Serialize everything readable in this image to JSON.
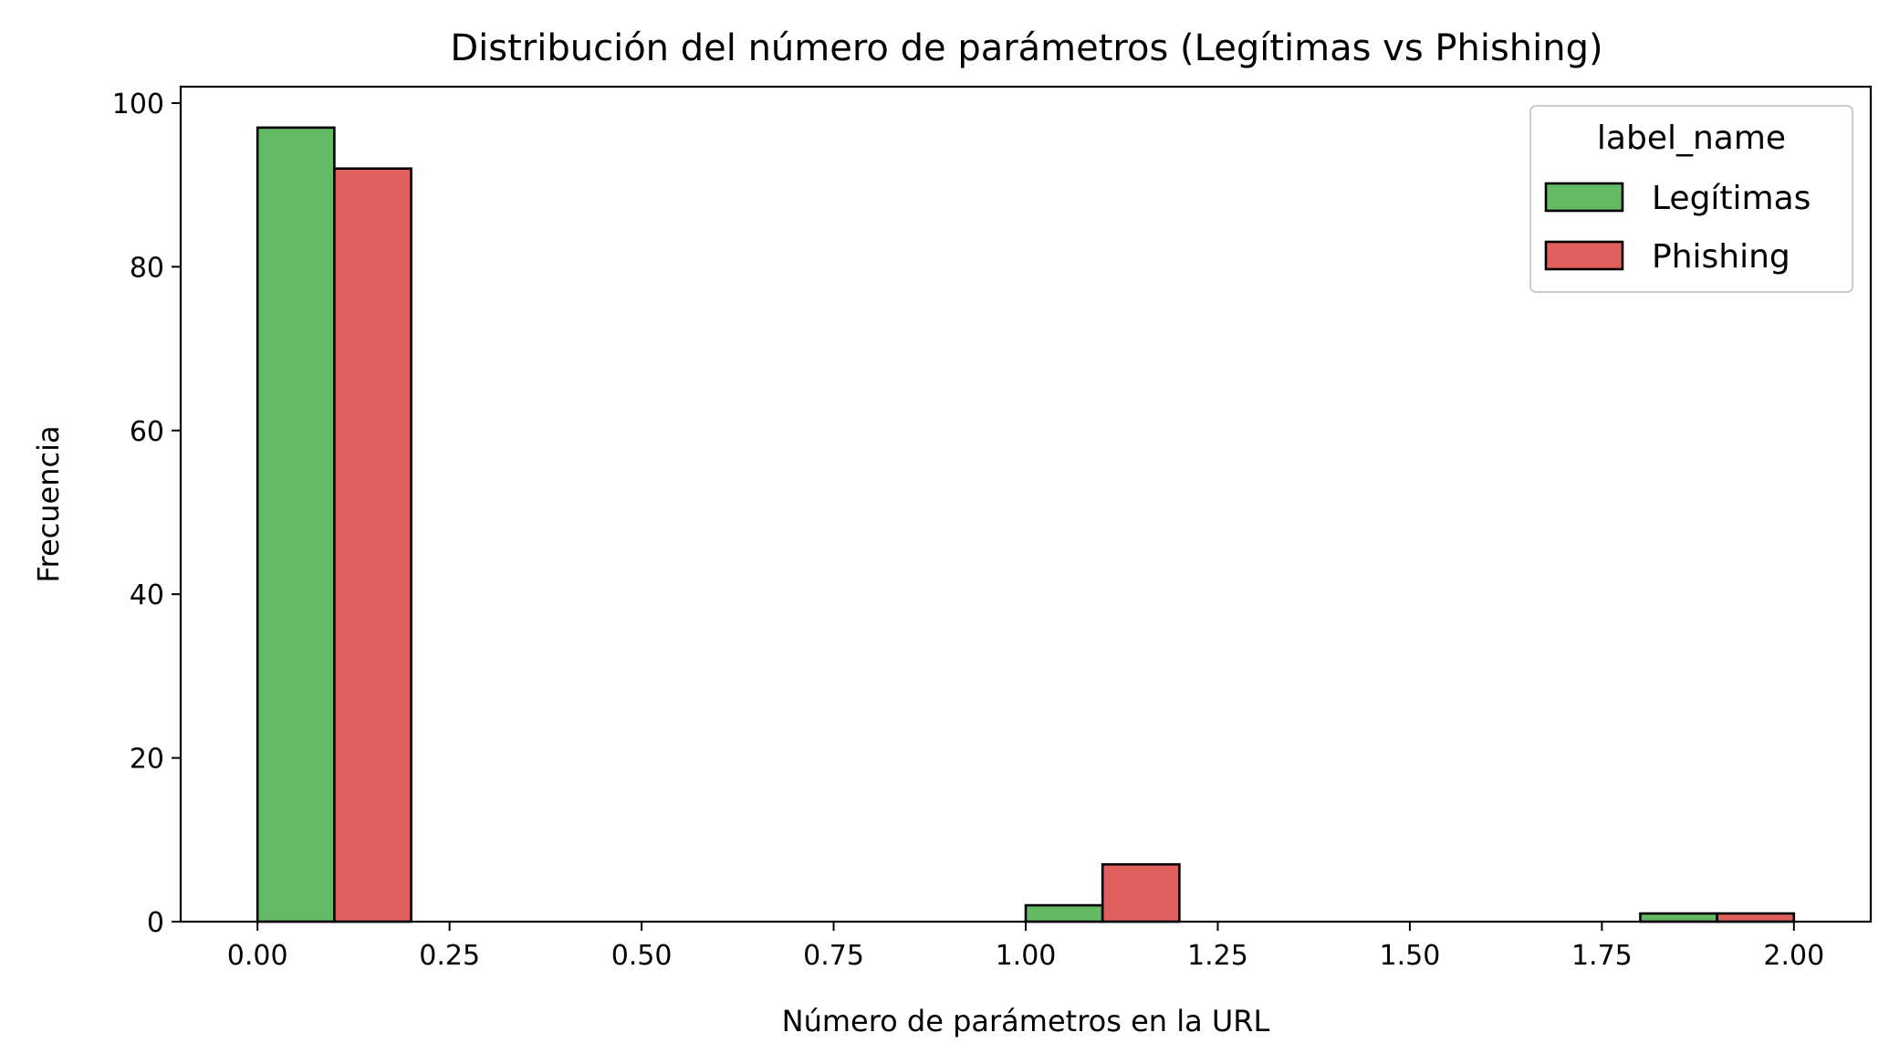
{
  "chart_data": {
    "type": "bar",
    "title": "Distribución del número de parámetros (Legítimas vs Phishing)",
    "xlabel": "Número de parámetros en la URL",
    "ylabel": "Frecuencia",
    "xlim": [
      -0.1,
      2.1
    ],
    "ylim": [
      0,
      102
    ],
    "x_ticks": [
      0.0,
      0.25,
      0.5,
      0.75,
      1.0,
      1.25,
      1.5,
      1.75,
      2.0
    ],
    "x_tick_labels": [
      "0.00",
      "0.25",
      "0.50",
      "0.75",
      "1.00",
      "1.25",
      "1.50",
      "1.75",
      "2.00"
    ],
    "y_ticks": [
      0,
      20,
      40,
      60,
      80,
      100
    ],
    "y_tick_labels": [
      "0",
      "20",
      "40",
      "60",
      "80",
      "100"
    ],
    "bin_width": 0.1,
    "grid": false,
    "legend": {
      "title": "label_name",
      "position": "top-right"
    },
    "series": [
      {
        "name": "Legítimas",
        "color": "#64b964",
        "bins": [
          {
            "x0": 0.0,
            "x1": 0.1,
            "value": 97
          },
          {
            "x0": 1.0,
            "x1": 1.1,
            "value": 2
          },
          {
            "x0": 1.8,
            "x1": 1.9,
            "value": 1
          }
        ]
      },
      {
        "name": "Phishing",
        "color": "#e05f5f",
        "bins": [
          {
            "x0": 0.1,
            "x1": 0.2,
            "value": 92
          },
          {
            "x0": 1.1,
            "x1": 1.2,
            "value": 7
          },
          {
            "x0": 1.9,
            "x1": 2.0,
            "value": 1
          }
        ]
      }
    ]
  }
}
